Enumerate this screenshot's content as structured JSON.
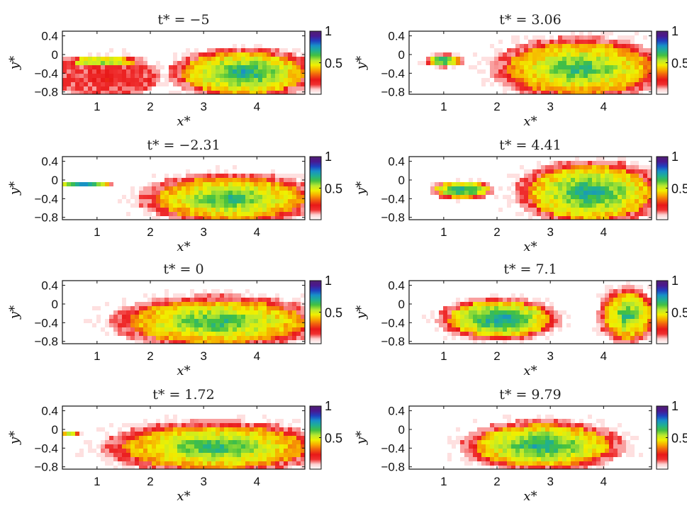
{
  "figure": {
    "colorbar_stops": [
      "#ffffff",
      "#fdd0d0",
      "#f03030",
      "#e81818",
      "#f05a10",
      "#f8a800",
      "#f0f000",
      "#b8e830",
      "#44c040",
      "#20b090",
      "#1890c8",
      "#2040c0",
      "#4a1890",
      "#502070"
    ],
    "colorbar_ticks": [
      "1",
      "0.5"
    ],
    "x_ticks": [
      "1",
      "2",
      "3",
      "4"
    ],
    "y_ticks": [
      "0.4",
      "0",
      "−0.4",
      "−0.8"
    ]
  },
  "chart_data": [
    {
      "type": "heatmap",
      "title": "t* = −5",
      "xlabel": "x*",
      "ylabel": "y*",
      "xlim": [
        0.35,
        4.9
      ],
      "ylim": [
        -0.85,
        0.5
      ],
      "clim": [
        0,
        1
      ],
      "blobs": [
        {
          "x_range": [
            0.35,
            1.9
          ],
          "y_range": [
            -0.2,
            -0.08
          ],
          "peak": 0.75
        },
        {
          "x_range": [
            0.35,
            2.0
          ],
          "y_range": [
            -0.85,
            -0.1
          ],
          "peak": 0.12
        },
        {
          "x_range": [
            2.6,
            4.9
          ],
          "y_range": [
            -0.85,
            0.05
          ],
          "peak": 0.65
        }
      ]
    },
    {
      "type": "heatmap",
      "title": "t* = 3.06",
      "xlabel": "x*",
      "ylabel": "y*",
      "xlim": [
        0.35,
        4.9
      ],
      "ylim": [
        -0.85,
        0.5
      ],
      "clim": [
        0,
        1
      ],
      "blobs": [
        {
          "x_range": [
            0.7,
            1.3
          ],
          "y_range": [
            -0.25,
            -0.02
          ],
          "peak": 0.7
        },
        {
          "x_range": [
            2.2,
            4.9
          ],
          "y_range": [
            -0.85,
            0.25
          ],
          "peak": 0.6
        }
      ]
    },
    {
      "type": "heatmap",
      "title": "t* = −2.31",
      "xlabel": "x*",
      "ylabel": "y*",
      "xlim": [
        0.35,
        4.9
      ],
      "ylim": [
        -0.85,
        0.5
      ],
      "clim": [
        0,
        1
      ],
      "blobs": [
        {
          "x_range": [
            0.35,
            1.2
          ],
          "y_range": [
            -0.15,
            -0.05
          ],
          "peak": 0.75
        },
        {
          "x_range": [
            2.1,
            4.9
          ],
          "y_range": [
            -0.85,
            0.05
          ],
          "peak": 0.6
        }
      ]
    },
    {
      "type": "heatmap",
      "title": "t* = 4.41",
      "xlabel": "x*",
      "ylabel": "y*",
      "xlim": [
        0.35,
        4.9
      ],
      "ylim": [
        -0.85,
        0.5
      ],
      "clim": [
        0,
        1
      ],
      "blobs": [
        {
          "x_range": [
            0.85,
            1.85
          ],
          "y_range": [
            -0.38,
            -0.05
          ],
          "peak": 0.7
        },
        {
          "x_range": [
            2.6,
            4.9
          ],
          "y_range": [
            -0.85,
            0.3
          ],
          "peak": 0.65
        }
      ]
    },
    {
      "type": "heatmap",
      "title": "t* = 0",
      "xlabel": "x*",
      "ylabel": "y*",
      "xlim": [
        0.35,
        4.9
      ],
      "ylim": [
        -0.85,
        0.5
      ],
      "clim": [
        0,
        1
      ],
      "blobs": [
        {
          "x_range": [
            1.6,
            4.9
          ],
          "y_range": [
            -0.85,
            0.08
          ],
          "peak": 0.6
        }
      ]
    },
    {
      "type": "heatmap",
      "title": "t* = 7.1",
      "xlabel": "x*",
      "ylabel": "y*",
      "xlim": [
        0.35,
        4.9
      ],
      "ylim": [
        -0.85,
        0.5
      ],
      "clim": [
        0,
        1
      ],
      "blobs": [
        {
          "x_range": [
            1.1,
            3.0
          ],
          "y_range": [
            -0.7,
            0.05
          ],
          "peak": 0.7
        },
        {
          "x_range": [
            4.0,
            4.9
          ],
          "y_range": [
            -0.75,
            0.25
          ],
          "peak": 0.6
        }
      ]
    },
    {
      "type": "heatmap",
      "title": "t* = 1.72",
      "xlabel": "x*",
      "ylabel": "y*",
      "xlim": [
        0.35,
        4.9
      ],
      "ylim": [
        -0.85,
        0.5
      ],
      "clim": [
        0,
        1
      ],
      "blobs": [
        {
          "x_range": [
            0.35,
            0.65
          ],
          "y_range": [
            -0.16,
            -0.02
          ],
          "peak": 0.5
        },
        {
          "x_range": [
            1.5,
            4.9
          ],
          "y_range": [
            -0.85,
            0.08
          ],
          "peak": 0.6
        }
      ]
    },
    {
      "type": "heatmap",
      "title": "t* = 9.79",
      "xlabel": "x*",
      "ylabel": "y*",
      "xlim": [
        0.35,
        4.9
      ],
      "ylim": [
        -0.85,
        0.5
      ],
      "clim": [
        0,
        1
      ],
      "blobs": [
        {
          "x_range": [
            1.6,
            4.1
          ],
          "y_range": [
            -0.8,
            0.1
          ],
          "peak": 0.65
        }
      ]
    }
  ]
}
